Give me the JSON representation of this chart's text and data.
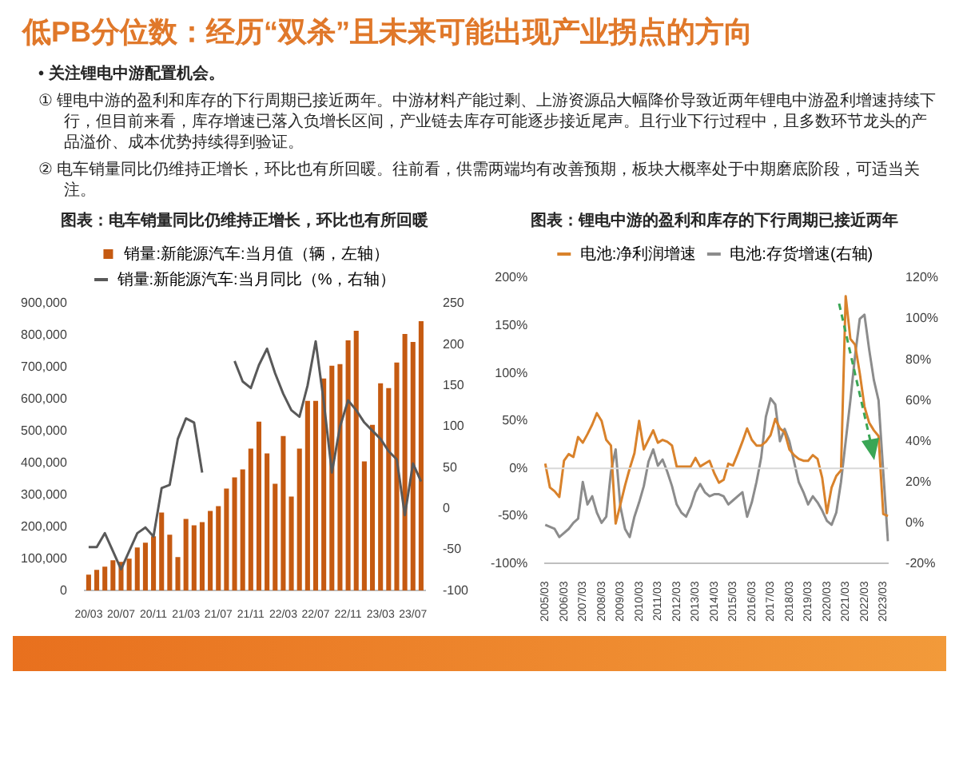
{
  "chart_data": [
    {
      "type": "other",
      "title": "低PB分位数：经历“双杀”且未来可能出现产业拐点的方向",
      "annotations": [
        "• 关注锂电中游配置机会。",
        "① 锂电中游的盈利和库存的下行周期已接近两年。中游材料产能过剩、上游资源品大幅降价导致近两年锂电中游盈利增速持续下行，但目前来看，库存增速已落入负增长区间，产业链去库存可能逐步接近尾声。且行业下行过程中，且多数环节龙头的产品溢价、成本优势持续得到验证。",
        "② 电车销量同比仍维持正增长，环比也有所回暖。往前看，供需两端均有改善预期，板块大概率处于中期磨底阶段，可适当关注。"
      ]
    },
    {
      "type": "bar",
      "title": "图表：电车销量同比仍维持正增长，环比也有所回暖",
      "legend": "top",
      "marker": "none",
      "categories": [
        "20/03",
        null,
        null,
        null,
        "20/07",
        null,
        null,
        null,
        "20/11",
        null,
        null,
        null,
        "21/03",
        null,
        null,
        null,
        "21/07",
        null,
        null,
        null,
        "21/11",
        null,
        null,
        null,
        "22/03",
        null,
        null,
        null,
        "22/07",
        null,
        null,
        null,
        "22/11",
        null,
        null,
        null,
        "23/03",
        null,
        null,
        null,
        "23/07",
        null
      ],
      "series": [
        {
          "name": "销量:新能源汽车:当月值（辆，左轴）",
          "type": "bar",
          "color": "#c55a11",
          "values": [
            50000,
            65000,
            75000,
            95000,
            90000,
            100000,
            135000,
            150000,
            170000,
            245000,
            175000,
            105000,
            225000,
            205000,
            215000,
            250000,
            265000,
            320000,
            355000,
            380000,
            445000,
            530000,
            430000,
            335000,
            485000,
            295000,
            445000,
            595000,
            595000,
            665000,
            705000,
            710000,
            785000,
            815000,
            405000,
            520000,
            650000,
            635000,
            715000,
            805000,
            780000,
            845000
          ]
        },
        {
          "name": "销量:新能源汽车:当月同比（%，右轴）",
          "type": "line",
          "axis": "y2",
          "color": "#595959",
          "values": [
            -47,
            -47,
            -30,
            -52,
            -74,
            -52,
            -30,
            -23,
            -34,
            25,
            29,
            85,
            110,
            105,
            44,
            null,
            null,
            null,
            180,
            155,
            147,
            175,
            195,
            165,
            140,
            120,
            112,
            150,
            204,
            130,
            44,
            100,
            132,
            120,
            105,
            95,
            85,
            70,
            60,
            -8,
            55,
            33
          ]
        }
      ],
      "ylim": [
        0,
        900000
      ],
      "yticks": [
        0,
        {
          "value": 100000,
          "label": "100,000"
        },
        {
          "value": 200000,
          "label": "200,000"
        },
        {
          "value": 300000,
          "label": "300,000"
        },
        {
          "value": 400000,
          "label": "400,000"
        },
        {
          "value": 500000,
          "label": "500,000"
        },
        {
          "value": 600000,
          "label": "600,000"
        },
        {
          "value": 700000,
          "label": "700,000"
        },
        {
          "value": 800000,
          "label": "800,000"
        },
        {
          "value": 900000,
          "label": "900,000"
        }
      ],
      "y2lim": [
        -100,
        250
      ],
      "y2ticks": [
        -100,
        -50,
        0,
        50,
        100,
        150,
        200,
        250
      ]
    },
    {
      "type": "line",
      "title": "图表：锂电中游的盈利和库存的下行周期已接近两年",
      "legend": "top",
      "marker": "none",
      "categories": [
        "2005/03",
        null,
        null,
        null,
        "2006/03",
        null,
        null,
        null,
        "2007/03",
        null,
        null,
        null,
        "2008/03",
        null,
        null,
        null,
        "2009/03",
        null,
        null,
        null,
        "2010/03",
        null,
        null,
        null,
        "2011/03",
        null,
        null,
        null,
        "2012/03",
        null,
        null,
        null,
        "2013/03",
        null,
        null,
        null,
        "2014/03",
        null,
        null,
        null,
        "2015/03",
        null,
        null,
        null,
        "2016/03",
        null,
        null,
        null,
        "2017/03",
        null,
        null,
        null,
        "2018/03",
        null,
        null,
        null,
        "2019/03",
        null,
        null,
        null,
        "2020/03",
        null,
        null,
        null,
        "2021/03",
        null,
        null,
        null,
        "2022/03",
        null,
        null,
        null,
        "2023/03",
        null
      ],
      "series": [
        {
          "name": "电池:净利润增速",
          "type": "line",
          "color": "#d9822b",
          "values": [
            5,
            -20,
            -24,
            -30,
            8,
            15,
            12,
            33,
            27,
            36,
            46,
            58,
            50,
            30,
            24,
            -58,
            -38,
            -18,
            0,
            16,
            50,
            20,
            30,
            40,
            27,
            30,
            28,
            24,
            2,
            2,
            2,
            2,
            11,
            2,
            5,
            8,
            -5,
            -15,
            -12,
            5,
            3,
            15,
            28,
            42,
            30,
            24,
            24,
            28,
            35,
            52,
            42,
            38,
            20,
            14,
            10,
            8,
            8,
            14,
            10,
            -10,
            -47,
            -20,
            -8,
            -2,
            181,
            136,
            130,
            100,
            65,
            48,
            40,
            34,
            -48,
            -50
          ]
        },
        {
          "name": "电池:存货增速(右轴)",
          "type": "line",
          "axis": "y2",
          "color": "#8c8c8c",
          "values": [
            -1,
            -2,
            -3,
            -7,
            -5,
            -3,
            0,
            2,
            20,
            9,
            13,
            5,
            0,
            3,
            25,
            36,
            8,
            -3,
            -7,
            3,
            10,
            18,
            30,
            36,
            28,
            31,
            25,
            18,
            9,
            5,
            3,
            8,
            15,
            19,
            15,
            13,
            14,
            14,
            13,
            9,
            11,
            13,
            15,
            3,
            10,
            20,
            32,
            52,
            61,
            58,
            40,
            46,
            40,
            30,
            20,
            15,
            9,
            13,
            10,
            6,
            1,
            -1,
            5,
            20,
            40,
            60,
            82,
            100,
            102,
            85,
            70,
            60,
            25,
            -9
          ]
        }
      ],
      "ylim": [
        -100,
        200
      ],
      "yticks": [
        {
          "value": -100,
          "label": "-100%"
        },
        {
          "value": -50,
          "label": "-50%"
        },
        {
          "value": 0,
          "label": "0%"
        },
        {
          "value": 50,
          "label": "50%"
        },
        {
          "value": 100,
          "label": "100%"
        },
        {
          "value": 150,
          "label": "150%"
        },
        {
          "value": 200,
          "label": "200%"
        }
      ],
      "y2lim": [
        -20,
        120
      ],
      "y2ticks": [
        {
          "value": -20,
          "label": "-20%"
        },
        {
          "value": 0,
          "label": "0%"
        },
        {
          "value": 20,
          "label": "20%"
        },
        {
          "value": 40,
          "label": "40%"
        },
        {
          "value": 60,
          "label": "60%"
        },
        {
          "value": 80,
          "label": "80%"
        },
        {
          "value": 100,
          "label": "100%"
        },
        {
          "value": 120,
          "label": "120%"
        }
      ],
      "ref_lines": [
        {
          "axis": "y",
          "value": 0,
          "color": "#d9d9d9"
        }
      ]
    }
  ]
}
